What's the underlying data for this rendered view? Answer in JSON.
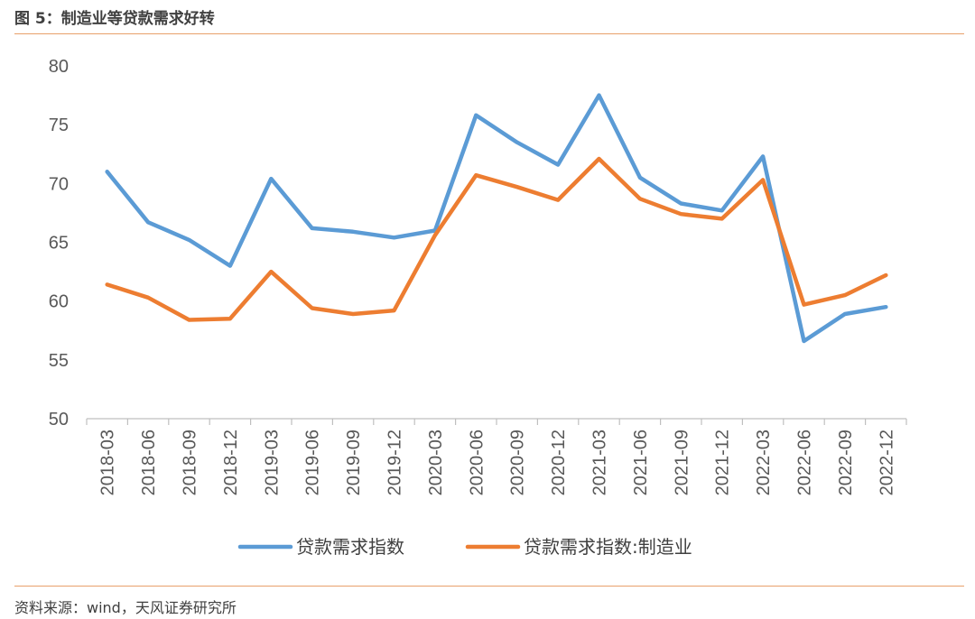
{
  "figure": {
    "title": "图 5：制造业等贷款需求好转",
    "source": "资料来源：wind，天风证券研究所"
  },
  "chart_data": {
    "type": "line",
    "categories": [
      "2018-03",
      "2018-06",
      "2018-09",
      "2018-12",
      "2019-03",
      "2019-06",
      "2019-09",
      "2019-12",
      "2020-03",
      "2020-06",
      "2020-09",
      "2020-12",
      "2021-03",
      "2021-06",
      "2021-09",
      "2021-12",
      "2022-03",
      "2022-06",
      "2022-09",
      "2022-12"
    ],
    "series": [
      {
        "name": "贷款需求指数",
        "color": "#5B9BD5",
        "values": [
          71.0,
          66.7,
          65.2,
          63.0,
          70.4,
          66.2,
          65.9,
          65.4,
          66.0,
          75.8,
          73.5,
          71.6,
          77.5,
          70.5,
          68.3,
          67.7,
          72.3,
          56.6,
          58.9,
          59.5
        ]
      },
      {
        "name": "贷款需求指数:制造业",
        "color": "#ED7D31",
        "values": [
          61.4,
          60.3,
          58.4,
          58.5,
          62.5,
          59.4,
          58.9,
          59.2,
          65.6,
          70.7,
          69.7,
          68.6,
          72.1,
          68.7,
          67.4,
          67.0,
          70.3,
          59.7,
          60.5,
          62.2
        ]
      }
    ],
    "ylim": [
      50,
      80
    ],
    "yticks": [
      50,
      55,
      60,
      65,
      70,
      75,
      80
    ],
    "grid": false,
    "legend": "bottom"
  }
}
